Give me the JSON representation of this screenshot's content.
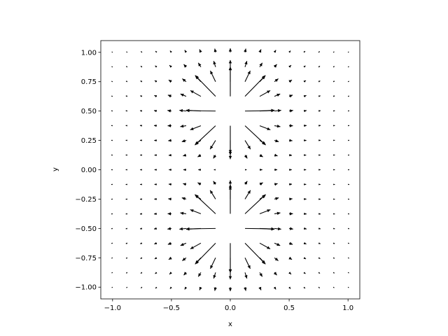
{
  "chart_data": {
    "type": "quiver",
    "title": "",
    "xlabel": "x",
    "ylabel": "y",
    "xlim": [
      -1.1,
      1.1
    ],
    "ylim": [
      -1.1,
      1.1
    ],
    "xticks": [
      -1.0,
      -0.5,
      0.0,
      0.5,
      1.0
    ],
    "xtick_labels": [
      "−1.0",
      "−0.5",
      "0.0",
      "0.5",
      "1.0"
    ],
    "yticks": [
      -1.0,
      -0.75,
      -0.5,
      -0.25,
      0.0,
      0.25,
      0.5,
      0.75,
      1.0
    ],
    "ytick_labels": [
      "−1.00",
      "−0.75",
      "−0.50",
      "−0.25",
      "0.00",
      "0.25",
      "0.50",
      "0.75",
      "1.00"
    ],
    "grid": false,
    "legend": false,
    "color": "#000000",
    "field": {
      "description": "Electric field of two equal positive point charges",
      "charges": [
        {
          "x": 0.0,
          "y": 0.5,
          "q": 1
        },
        {
          "x": 0.0,
          "y": -0.5,
          "q": 1
        }
      ],
      "grid_x": {
        "start": -1.0,
        "stop": 1.0,
        "count": 17
      },
      "grid_y": {
        "start": -1.0,
        "stop": 1.0,
        "count": 17
      },
      "arrow_scale": 0.0077,
      "max_arrow_length": 0.25
    }
  }
}
